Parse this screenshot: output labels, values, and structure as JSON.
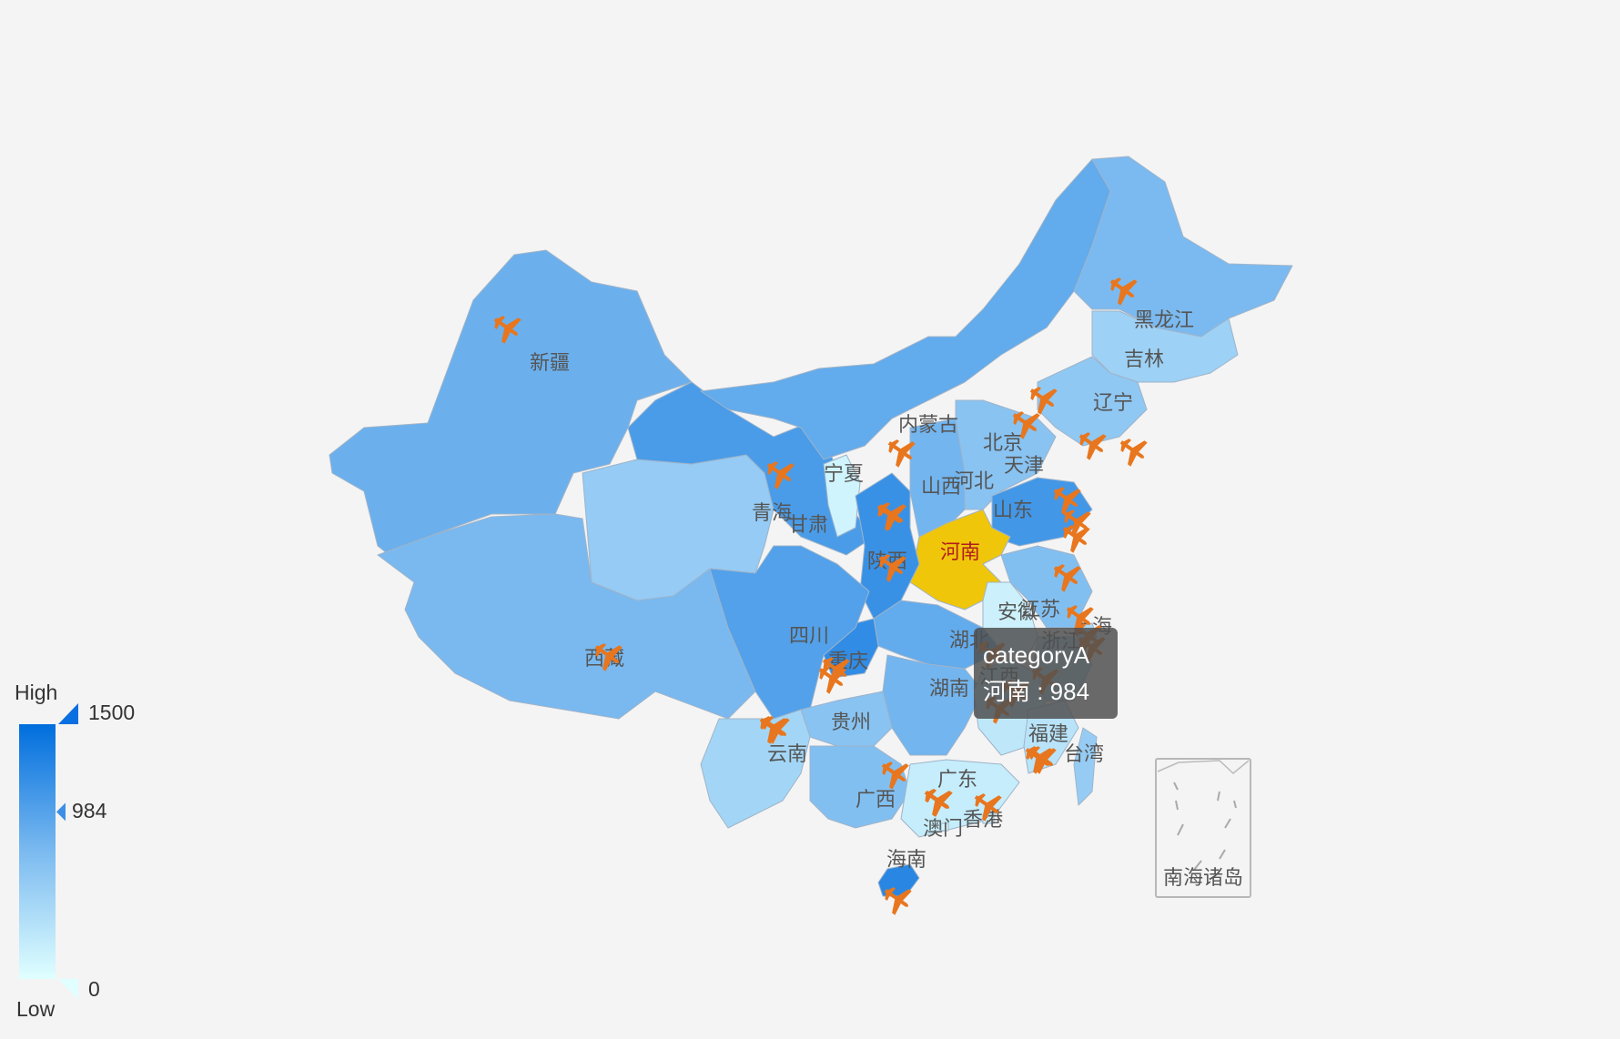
{
  "map": {
    "series_name": "categoryA",
    "highlight": "河南",
    "inset_label": "南海诸岛",
    "colors": {
      "low": "#e0ffff",
      "high": "#006edd",
      "highlight": "#f0c60a",
      "icon": "#e8761e",
      "background": "#f4f4f4"
    },
    "icon_name": "airplane-icon",
    "provinces": [
      {
        "name": "新疆",
        "value": 850
      },
      {
        "name": "西藏",
        "value": 760
      },
      {
        "name": "青海",
        "value": 560
      },
      {
        "name": "甘肃",
        "value": 1050
      },
      {
        "name": "宁夏",
        "value": 120
      },
      {
        "name": "内蒙古",
        "value": 900
      },
      {
        "name": "黑龙江",
        "value": 750
      },
      {
        "name": "吉林",
        "value": 500
      },
      {
        "name": "辽宁",
        "value": 600
      },
      {
        "name": "北京",
        "value": 700
      },
      {
        "name": "天津",
        "value": 500
      },
      {
        "name": "河北",
        "value": 650
      },
      {
        "name": "山西",
        "value": 800
      },
      {
        "name": "山东",
        "value": 1100
      },
      {
        "name": "河南",
        "value": 984
      },
      {
        "name": "陕西",
        "value": 1150
      },
      {
        "name": "江苏",
        "value": 700
      },
      {
        "name": "安徽",
        "value": 150
      },
      {
        "name": "上海",
        "value": 400
      },
      {
        "name": "浙江",
        "value": 350
      },
      {
        "name": "湖北",
        "value": 900
      },
      {
        "name": "重庆",
        "value": 1200
      },
      {
        "name": "四川",
        "value": 1000
      },
      {
        "name": "湖南",
        "value": 800
      },
      {
        "name": "江西",
        "value": 250
      },
      {
        "name": "福建",
        "value": 300
      },
      {
        "name": "台湾",
        "value": 550
      },
      {
        "name": "贵州",
        "value": 650
      },
      {
        "name": "云南",
        "value": 450
      },
      {
        "name": "广西",
        "value": 700
      },
      {
        "name": "广东",
        "value": 200
      },
      {
        "name": "香港",
        "value": 150
      },
      {
        "name": "澳门",
        "value": 100
      },
      {
        "name": "海南",
        "value": 1250
      }
    ]
  },
  "visual_map": {
    "text_high": "High",
    "text_low": "Low",
    "max": "1500",
    "min": "0",
    "current": "984",
    "current_fraction": 0.656
  },
  "tooltip": {
    "series": "categoryA",
    "line": "河南 : 984"
  }
}
